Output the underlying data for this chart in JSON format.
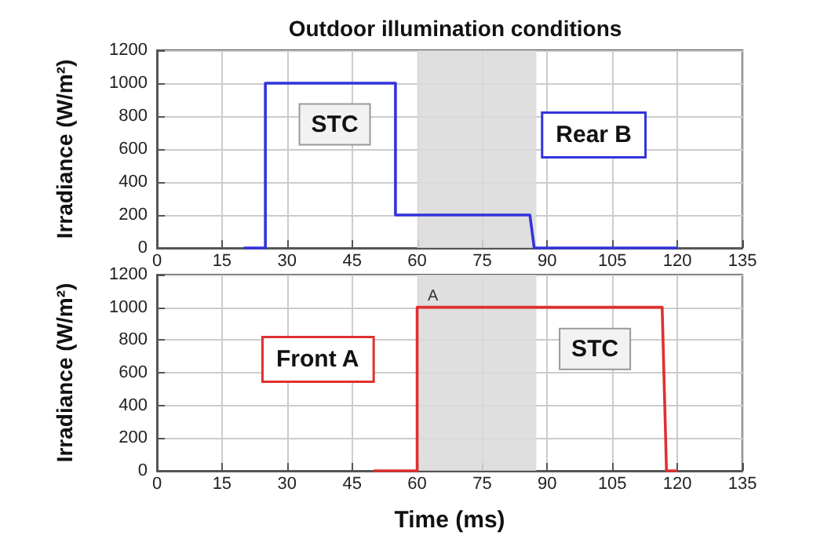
{
  "chart_data": [
    {
      "type": "line",
      "title": "Outdoor illumination conditions",
      "ylabel": "Irradiance (W/m²)",
      "xlim": [
        0,
        135
      ],
      "xticks": [
        0,
        15,
        30,
        45,
        60,
        75,
        90,
        105,
        120,
        135
      ],
      "ylim": [
        0,
        1200
      ],
      "yticks": [
        0,
        200,
        400,
        600,
        800,
        1000,
        1200
      ],
      "grid": true,
      "legend": "right",
      "marker": "none",
      "series": [
        {
          "name": "Rear B",
          "color": "#3333dd",
          "x": [
            20,
            25,
            25,
            55,
            55,
            86,
            87,
            120
          ],
          "values": [
            0,
            0,
            1000,
            1000,
            200,
            200,
            0,
            0
          ]
        }
      ],
      "bands": [
        {
          "axis": "x",
          "from": 60,
          "to": 87.5,
          "color": "#d9d9d9"
        }
      ],
      "annotations": [
        {
          "text": "STC",
          "x": 41,
          "y": 750
        }
      ]
    },
    {
      "type": "line",
      "xlabel": "Time (ms)",
      "ylabel": "Irradiance (W/m²)",
      "xlim": [
        0,
        135
      ],
      "xticks": [
        0,
        15,
        30,
        45,
        60,
        75,
        90,
        105,
        120,
        135
      ],
      "ylim": [
        0,
        1200
      ],
      "yticks": [
        0,
        200,
        400,
        600,
        800,
        1000,
        1200
      ],
      "grid": true,
      "legend": "left",
      "marker": "none",
      "series": [
        {
          "name": "Front A",
          "color": "#e03030",
          "x": [
            50,
            60,
            60,
            116.5,
            117.5,
            120
          ],
          "values": [
            0,
            0,
            1000,
            1000,
            0,
            0
          ]
        }
      ],
      "bands": [
        {
          "axis": "x",
          "from": 60,
          "to": 87.5,
          "color": "#d9d9d9",
          "label": "A"
        }
      ],
      "annotations": [
        {
          "text": "STC",
          "x": 101,
          "y": 745
        }
      ]
    }
  ]
}
